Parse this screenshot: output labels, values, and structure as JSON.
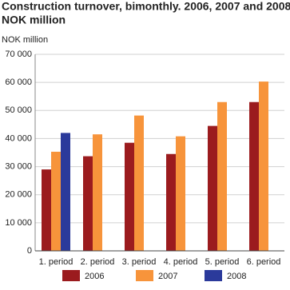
{
  "chart_data": {
    "type": "bar",
    "title": [
      "Construction turnover, bimonthly. 2006, 2007 and 2008.",
      "NOK million"
    ],
    "y_label": "NOK million",
    "categories": [
      "1. period",
      "2. period",
      "3. period",
      "4. period",
      "5. period",
      "6. period"
    ],
    "series": [
      {
        "name": "2006",
        "color": "#9b1b1e",
        "values": [
          29000,
          33700,
          38500,
          34500,
          44500,
          53000
        ]
      },
      {
        "name": "2007",
        "color": "#f7943b",
        "values": [
          35300,
          41500,
          48200,
          40800,
          53000,
          60300
        ]
      },
      {
        "name": "2008",
        "color": "#2b3a9b",
        "values": [
          42000,
          null,
          null,
          null,
          null,
          null
        ]
      }
    ],
    "ylim": [
      0,
      70000
    ],
    "yticks": [
      0,
      {
        "value": 10000,
        "label": "10 000"
      },
      {
        "value": 20000,
        "label": "20 000"
      },
      {
        "value": 30000,
        "label": "30 000"
      },
      {
        "value": 40000,
        "label": "40 000"
      },
      {
        "value": 50000,
        "label": "50 000"
      },
      {
        "value": 60000,
        "label": "60 000"
      },
      {
        "value": 70000,
        "label": "70 000"
      }
    ],
    "grid": true
  }
}
